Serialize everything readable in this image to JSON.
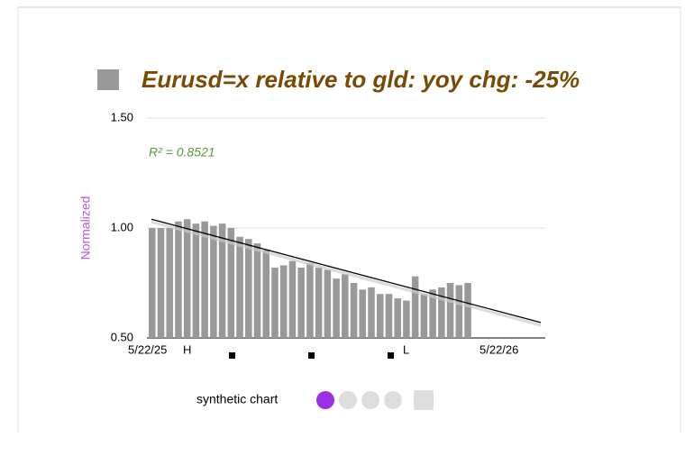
{
  "chart_data": {
    "type": "bar",
    "title": "Eurusd=x relative to gld:  yoy chg: -25%",
    "y_label": "Normalized",
    "annotation": "R² = 0.8521",
    "color": "#999999",
    "values": [
      1.0,
      1.0,
      1.0,
      1.03,
      1.04,
      1.02,
      1.03,
      1.01,
      1.02,
      1.0,
      0.96,
      0.95,
      0.93,
      0.9,
      0.82,
      0.83,
      0.85,
      0.82,
      0.84,
      0.82,
      0.81,
      0.77,
      0.79,
      0.75,
      0.72,
      0.73,
      0.7,
      0.7,
      0.68,
      0.67,
      0.78,
      0.7,
      0.72,
      0.73,
      0.75,
      0.74,
      0.75
    ],
    "trendline": {
      "start": 1.04,
      "end": 0.57
    },
    "ylim": [
      0.5,
      1.5
    ],
    "yticks": [
      {
        "value": 0.5,
        "label": "0.50"
      },
      {
        "value": 1.0,
        "label": "1.00"
      },
      {
        "value": 1.5,
        "label": "1.50"
      }
    ],
    "grid": true,
    "x_labels": [
      "5/22/25",
      "5/22/26"
    ],
    "markers": [
      "H",
      "L"
    ],
    "footer": "synthetic chart"
  }
}
